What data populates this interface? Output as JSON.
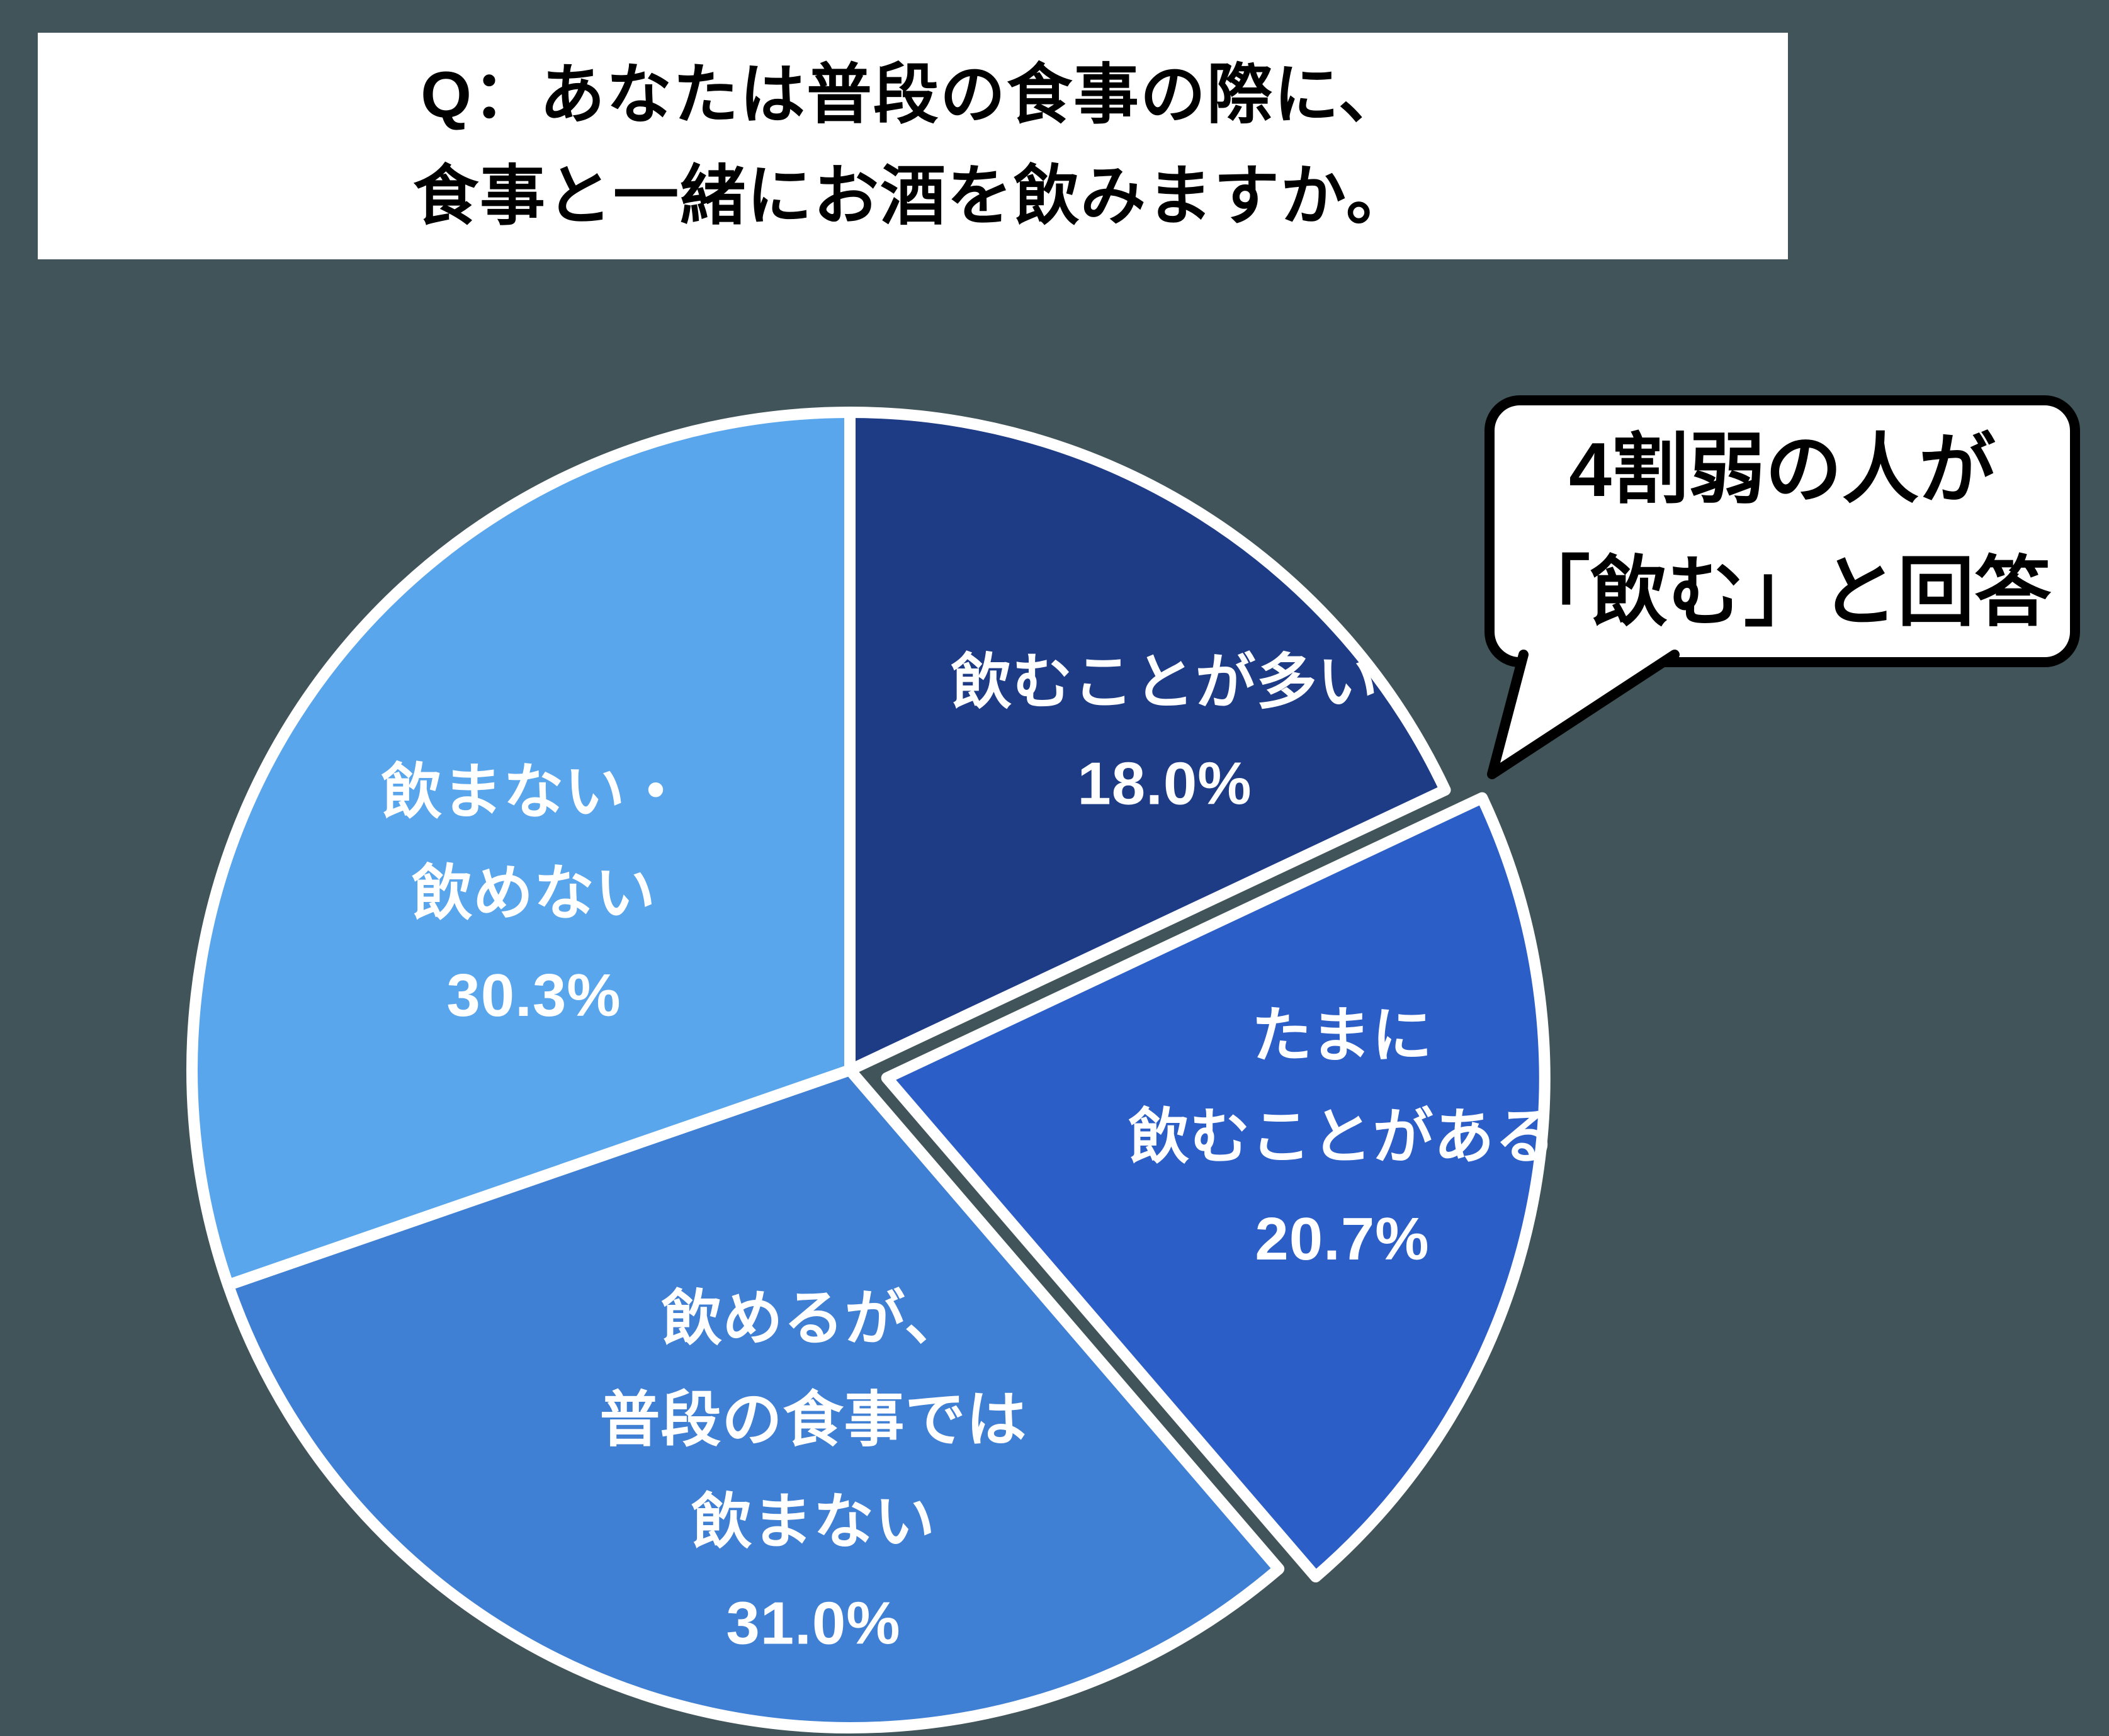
{
  "background_color": "#40545a",
  "title": {
    "line1": "Q：あなたは普段の食事の際に、",
    "line2": "食事と一緒にお酒を飲みますか。"
  },
  "callout": {
    "line1": "4割弱の人が",
    "line2": "「飲む」と回答"
  },
  "chart_data": {
    "type": "pie",
    "title": "Q：あなたは普段の食事の際に、食事と一緒にお酒を飲みますか。",
    "annotation": "4割弱の人が「飲む」と回答",
    "start_angle_deg": 0,
    "direction": "clockwise",
    "stroke_color": "#ffffff",
    "slices": [
      {
        "label": "飲むことが多い",
        "value": 18.0,
        "display": "飲むことが多い\n18.0%",
        "color": "#1e3c85",
        "exploded": false
      },
      {
        "label": "たまに飲むことがある",
        "value": 20.7,
        "display": "たまに\n飲むことがある\n20.7%",
        "color": "#2c5ec8",
        "exploded": true
      },
      {
        "label": "飲めるが、普段の食事では飲まない",
        "value": 31.0,
        "display": "飲めるが、\n普段の食事では\n飲まない\n31.0%",
        "color": "#4080d4",
        "exploded": false
      },
      {
        "label": "飲まない・飲めない",
        "value": 30.3,
        "display": "飲まない・\n飲めない\n30.3%",
        "color": "#5aa6ec",
        "exploded": false
      }
    ]
  }
}
